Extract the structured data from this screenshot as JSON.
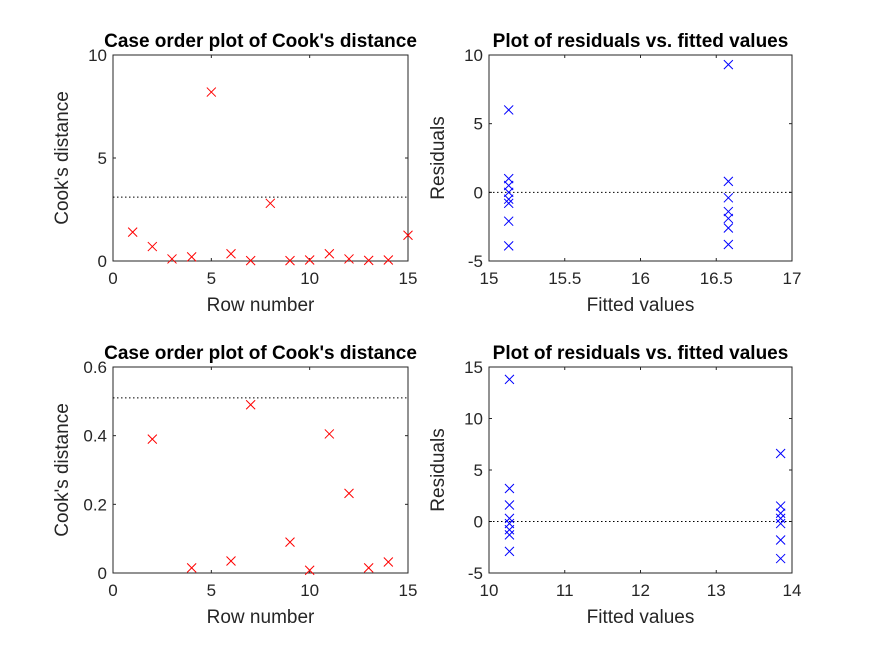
{
  "chart_data": [
    {
      "id": "tl",
      "type": "scatter",
      "title": "Case order plot of Cook's distance",
      "xlabel": "Row number",
      "ylabel": "Cook's distance",
      "xlim": [
        0,
        15
      ],
      "ylim": [
        0,
        10
      ],
      "xticks": [
        0,
        5,
        10,
        15
      ],
      "yticks": [
        0,
        5,
        10
      ],
      "marker": "x",
      "color": "#ff0000",
      "reference_line_y": 3.1,
      "points": [
        [
          1,
          1.4
        ],
        [
          2,
          0.7
        ],
        [
          3,
          0.1
        ],
        [
          4,
          0.2
        ],
        [
          5,
          8.2
        ],
        [
          6,
          0.35
        ],
        [
          7,
          0.02
        ],
        [
          8,
          2.8
        ],
        [
          9,
          0.02
        ],
        [
          10,
          0.05
        ],
        [
          11,
          0.35
        ],
        [
          12,
          0.1
        ],
        [
          13,
          0.03
        ],
        [
          14,
          0.05
        ],
        [
          15,
          1.25
        ]
      ]
    },
    {
      "id": "tr",
      "type": "scatter",
      "title": "Plot of residuals vs. fitted values",
      "xlabel": "Fitted values",
      "ylabel": "Residuals",
      "xlim": [
        15,
        17
      ],
      "ylim": [
        -5,
        10
      ],
      "xticks": [
        15,
        15.5,
        16,
        16.5,
        17
      ],
      "yticks": [
        -5,
        0,
        5,
        10
      ],
      "marker": "x",
      "color": "#0000ff",
      "reference_line_y": 0,
      "points": [
        [
          15.13,
          6.0
        ],
        [
          15.13,
          1.0
        ],
        [
          15.13,
          0.5
        ],
        [
          15.13,
          0.0
        ],
        [
          15.13,
          -0.5
        ],
        [
          15.13,
          -0.8
        ],
        [
          15.13,
          -2.1
        ],
        [
          15.13,
          -3.9
        ],
        [
          16.58,
          9.3
        ],
        [
          16.58,
          0.8
        ],
        [
          16.58,
          -0.4
        ],
        [
          16.58,
          -1.4
        ],
        [
          16.58,
          -1.9
        ],
        [
          16.58,
          -2.6
        ],
        [
          16.58,
          -3.8
        ]
      ]
    },
    {
      "id": "bl",
      "type": "scatter",
      "title": "Case order plot of Cook's distance",
      "xlabel": "Row number",
      "ylabel": "Cook's distance",
      "xlim": [
        0,
        15
      ],
      "ylim": [
        0,
        0.6
      ],
      "xticks": [
        0,
        5,
        10,
        15
      ],
      "yticks": [
        0,
        0.2,
        0.4,
        0.6
      ],
      "marker": "x",
      "color": "#ff0000",
      "reference_line_y": 0.51,
      "points": [
        [
          2,
          0.39
        ],
        [
          4,
          0.015
        ],
        [
          6,
          0.035
        ],
        [
          7,
          0.49
        ],
        [
          9,
          0.09
        ],
        [
          10,
          0.008
        ],
        [
          11,
          0.405
        ],
        [
          12,
          0.232
        ],
        [
          13,
          0.015
        ],
        [
          14,
          0.032
        ]
      ]
    },
    {
      "id": "br",
      "type": "scatter",
      "title": "Plot of residuals vs. fitted values",
      "xlabel": "Fitted values",
      "ylabel": "Residuals",
      "xlim": [
        10,
        14
      ],
      "ylim": [
        -5,
        15
      ],
      "xticks": [
        10,
        11,
        12,
        13,
        14
      ],
      "yticks": [
        -5,
        0,
        5,
        10,
        15
      ],
      "marker": "x",
      "color": "#0000ff",
      "reference_line_y": 0,
      "points": [
        [
          10.27,
          13.8
        ],
        [
          10.27,
          3.2
        ],
        [
          10.27,
          1.6
        ],
        [
          10.27,
          0.3
        ],
        [
          10.27,
          -0.2
        ],
        [
          10.27,
          -0.8
        ],
        [
          10.27,
          -1.3
        ],
        [
          10.27,
          -2.9
        ],
        [
          13.85,
          6.6
        ],
        [
          13.85,
          1.5
        ],
        [
          13.85,
          0.8
        ],
        [
          13.85,
          0.3
        ],
        [
          13.85,
          -0.2
        ],
        [
          13.85,
          -1.8
        ],
        [
          13.85,
          -3.6
        ]
      ]
    }
  ]
}
